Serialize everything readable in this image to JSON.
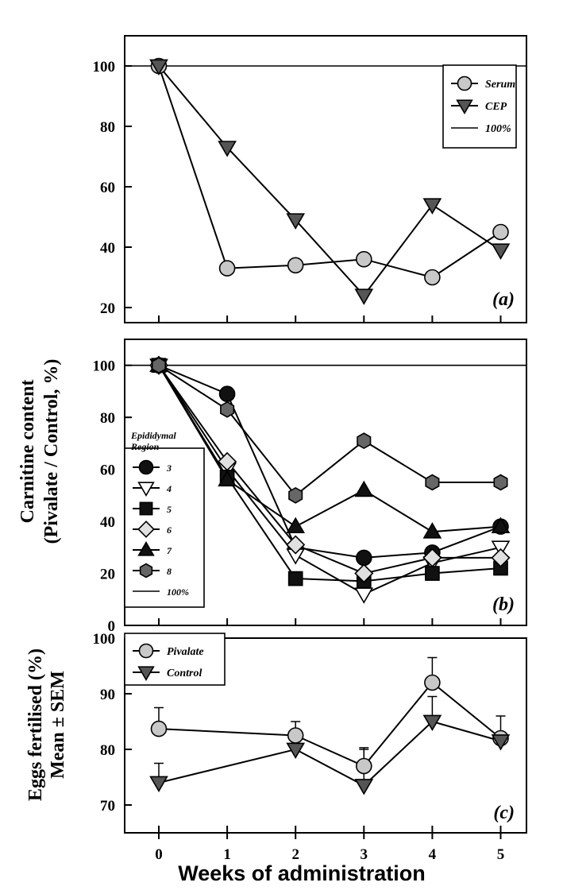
{
  "figure": {
    "y_label_line1": "Carnitine content",
    "y_label_line2": "(Pivalate / Control, %)",
    "c_y_label_line1": "Eggs fertilised (%)",
    "c_y_label_line2": "Mean ± SEM",
    "x_label": "Weeks of administration"
  },
  "chart_data": [
    {
      "panel": "(a)",
      "type": "line",
      "x": [
        0,
        1,
        2,
        3,
        4,
        5
      ],
      "ylim": [
        15,
        110
      ],
      "yticks": [
        20,
        40,
        60,
        80,
        100
      ],
      "reference_line": 100,
      "legend_title": "",
      "legend_position": "top-right",
      "series": [
        {
          "name": "Serum",
          "marker": "circle",
          "fill": "#c8c8c8",
          "values": [
            100,
            33,
            34,
            36,
            30,
            45
          ]
        },
        {
          "name": "CEP",
          "marker": "triangle-down",
          "fill": "#555555",
          "values": [
            100,
            73,
            49,
            24,
            54,
            39
          ]
        },
        {
          "name": "100%",
          "marker": "line",
          "fill": "#000000",
          "values": [
            100,
            100,
            100,
            100,
            100,
            100
          ]
        }
      ]
    },
    {
      "panel": "(b)",
      "type": "line",
      "x": [
        0,
        1,
        2,
        3,
        4,
        5
      ],
      "ylim": [
        0,
        110
      ],
      "yticks": [
        0,
        20,
        40,
        60,
        80,
        100
      ],
      "reference_line": 100,
      "legend_title": "Epididymal Region",
      "legend_position": "left",
      "series": [
        {
          "name": "3",
          "marker": "circle",
          "fill": "#111111",
          "values": [
            100,
            89,
            30,
            26,
            28,
            38
          ]
        },
        {
          "name": "4",
          "marker": "triangle-down",
          "fill": "#ffffff",
          "values": [
            100,
            60,
            27,
            12,
            24,
            30
          ]
        },
        {
          "name": "5",
          "marker": "square",
          "fill": "#111111",
          "values": [
            100,
            57,
            18,
            17,
            20,
            22
          ]
        },
        {
          "name": "6",
          "marker": "diamond",
          "fill": "#e0e0e0",
          "values": [
            100,
            63,
            31,
            20,
            26,
            26
          ]
        },
        {
          "name": "7",
          "marker": "triangle-up",
          "fill": "#111111",
          "values": [
            100,
            56,
            38,
            52,
            36,
            38
          ]
        },
        {
          "name": "8",
          "marker": "hexagon",
          "fill": "#666666",
          "values": [
            100,
            83,
            50,
            71,
            55,
            55
          ]
        },
        {
          "name": "100%",
          "marker": "line",
          "fill": "#000000",
          "values": [
            100,
            100,
            100,
            100,
            100,
            100
          ]
        }
      ]
    },
    {
      "panel": "(c)",
      "type": "line",
      "x": [
        0,
        1,
        2,
        3,
        4,
        5
      ],
      "xticks": [
        0,
        1,
        2,
        3,
        4,
        5
      ],
      "ylim": [
        65,
        100
      ],
      "yticks": [
        70,
        80,
        90,
        100
      ],
      "legend_position": "top-left",
      "series": [
        {
          "name": "Pivalate",
          "marker": "circle",
          "fill": "#c8c8c8",
          "x": [
            0,
            2,
            3,
            4,
            5
          ],
          "values": [
            83.7,
            82.5,
            77,
            92,
            82
          ],
          "sem": [
            3.8,
            2.5,
            3.3,
            4.5,
            4
          ]
        },
        {
          "name": "Control",
          "marker": "triangle-down",
          "fill": "#555555",
          "x": [
            0,
            2,
            3,
            4,
            5
          ],
          "values": [
            74,
            80,
            73.5,
            85,
            81.5
          ],
          "sem": [
            3.5,
            2.5,
            6.5,
            4.5,
            0
          ]
        }
      ]
    }
  ]
}
